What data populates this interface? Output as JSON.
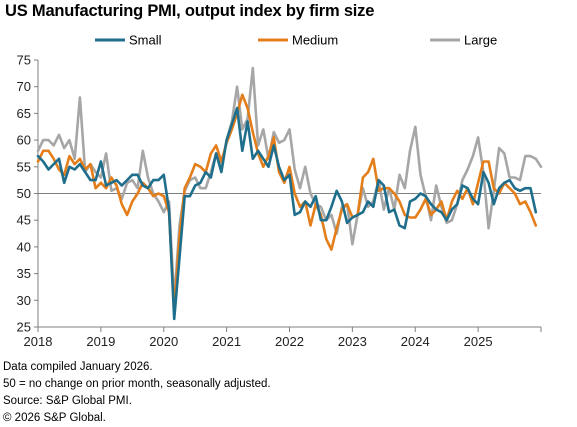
{
  "chart_data": {
    "type": "line",
    "title": "US Manufacturing PMI, output index by firm size",
    "xlabel": "",
    "ylabel": "",
    "ylim": [
      25,
      75
    ],
    "yticks": [
      25,
      30,
      35,
      40,
      45,
      50,
      55,
      60,
      65,
      70,
      75
    ],
    "xticks": [
      "2018",
      "2019",
      "2020",
      "2021",
      "2022",
      "2023",
      "2024",
      "2025"
    ],
    "x_start": "2018-01",
    "x_end": "2025-12",
    "reference_line": 50,
    "grid": false,
    "legend_position": "top",
    "series": [
      {
        "name": "Small",
        "color": "#1f6e8c",
        "values": [
          57,
          56,
          54.5,
          55.5,
          56.5,
          52,
          55,
          54.5,
          55.5,
          54,
          52.5,
          52.5,
          56,
          51.5,
          52,
          52.5,
          51.5,
          52.5,
          53.5,
          53.5,
          51.5,
          51,
          52.5,
          52.5,
          53.5,
          47,
          26.5,
          38,
          49.5,
          49.5,
          51.5,
          52,
          54,
          53,
          57.5,
          54,
          60,
          63,
          66,
          58,
          63.5,
          56.5,
          58,
          56.5,
          55,
          59,
          55,
          52.5,
          53.5,
          46,
          46.5,
          48.5,
          47.5,
          49.5,
          45,
          45,
          47.5,
          50.5,
          48.5,
          44.5,
          45.5,
          46,
          46.5,
          48.5,
          47.5,
          52.5,
          51.5,
          46.5,
          47,
          44,
          43.5,
          48.5,
          49,
          50,
          49.5,
          48,
          47,
          46.5,
          45,
          47,
          48,
          51.5,
          51,
          49,
          48,
          54,
          52,
          48,
          51,
          52,
          52.5,
          51,
          50.5,
          51,
          51,
          46.5
        ]
      },
      {
        "name": "Medium",
        "color": "#e37e1b",
        "values": [
          56,
          58,
          58,
          56.5,
          54.5,
          53.5,
          57,
          55.5,
          56.5,
          54.5,
          55.5,
          51,
          52,
          51,
          53,
          51.5,
          48,
          46,
          48.5,
          50,
          52,
          51,
          49.5,
          50,
          49.5,
          46.5,
          28,
          42,
          51,
          53,
          55.5,
          55,
          54,
          57.5,
          59,
          56,
          59.5,
          62,
          65,
          68.5,
          66,
          61.5,
          57.5,
          55,
          57,
          60.5,
          54,
          52,
          55,
          50,
          47.5,
          48.5,
          44,
          48,
          46,
          41.5,
          39.5,
          43.5,
          47,
          48,
          45.5,
          46,
          53,
          54,
          56.5,
          50.5,
          51,
          51,
          50,
          48.5,
          46,
          45.5,
          45.5,
          47,
          49,
          46,
          47,
          48.5,
          45,
          48.5,
          50.5,
          49,
          51,
          48,
          52,
          56,
          56,
          51,
          50,
          52,
          51,
          50,
          48,
          48.5,
          46.5,
          44
        ]
      },
      {
        "name": "Large",
        "color": "#a6a6a6",
        "values": [
          58,
          60,
          60,
          59,
          61,
          58.5,
          60,
          56.5,
          68,
          54,
          55.5,
          54,
          53,
          57.5,
          50.5,
          51,
          49,
          52,
          52.5,
          51,
          58,
          53,
          50,
          48.5,
          46.5,
          48.5,
          30,
          44,
          50.5,
          52.5,
          53,
          51,
          51,
          54,
          57.5,
          55,
          60,
          63.5,
          70,
          62,
          64,
          73.5,
          59,
          62,
          56.5,
          61.5,
          59.5,
          60,
          62,
          54.5,
          51,
          55,
          50,
          48,
          47.5,
          45,
          46,
          42.5,
          47.5,
          48,
          40.5,
          46,
          51,
          47.5,
          48.5,
          52.5,
          47,
          51,
          47,
          53.5,
          51,
          58,
          62.5,
          53.5,
          49.5,
          45,
          51.5,
          47.5,
          44.5,
          45,
          48,
          52.5,
          54.5,
          57,
          60.5,
          54,
          43.5,
          50.5,
          58.5,
          57.5,
          53,
          53,
          52.5,
          57,
          57,
          56.5,
          55
        ]
      }
    ]
  },
  "notes": {
    "line1": "Data compiled January 2026.",
    "line2": "50 = no change on prior month, seasonally adjusted.",
    "line3": "Source: S&P Global PMI.",
    "line4": "© 2026 S&P Global."
  }
}
